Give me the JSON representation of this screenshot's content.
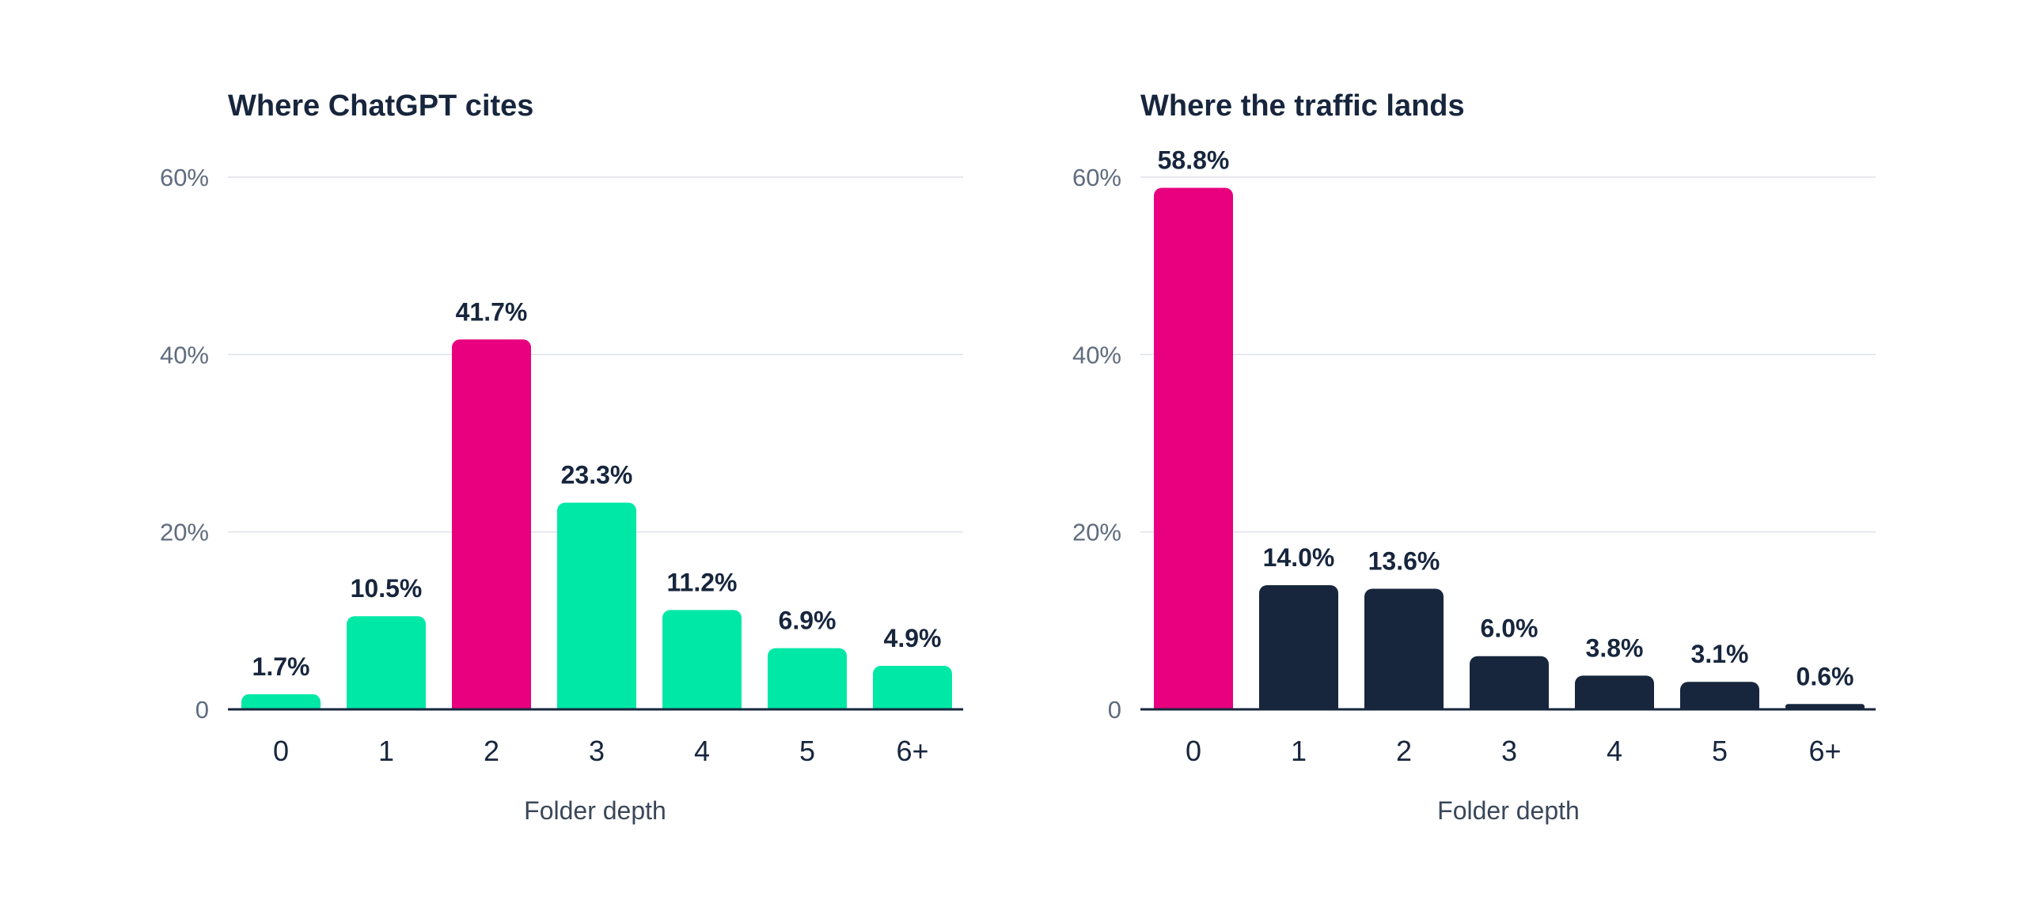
{
  "colors": {
    "highlight": "#e8007f",
    "green": "#00e8a6",
    "navy": "#17263d"
  },
  "chart_data": [
    {
      "type": "bar",
      "title": "Where ChatGPT cites",
      "xlabel": "Folder depth",
      "ylabel": "",
      "ylim": [
        0,
        60
      ],
      "yticks": [
        0,
        20,
        40,
        60
      ],
      "ytick_labels": [
        "0",
        "20%",
        "40%",
        "60%"
      ],
      "grid": true,
      "categories": [
        "0",
        "1",
        "2",
        "3",
        "4",
        "5",
        "6+"
      ],
      "values": [
        1.7,
        10.5,
        41.7,
        23.3,
        11.2,
        6.9,
        4.9
      ],
      "value_labels": [
        "1.7%",
        "10.5%",
        "41.7%",
        "23.3%",
        "11.2%",
        "6.9%",
        "4.9%"
      ],
      "bar_colors": [
        "#00e8a6",
        "#00e8a6",
        "#e8007f",
        "#00e8a6",
        "#00e8a6",
        "#00e8a6",
        "#00e8a6"
      ]
    },
    {
      "type": "bar",
      "title": "Where the traffic lands",
      "xlabel": "Folder depth",
      "ylabel": "",
      "ylim": [
        0,
        60
      ],
      "yticks": [
        0,
        20,
        40,
        60
      ],
      "ytick_labels": [
        "0",
        "20%",
        "40%",
        "60%"
      ],
      "grid": true,
      "categories": [
        "0",
        "1",
        "2",
        "3",
        "4",
        "5",
        "6+"
      ],
      "values": [
        58.8,
        14.0,
        13.6,
        6.0,
        3.8,
        3.1,
        0.6
      ],
      "value_labels": [
        "58.8%",
        "14.0%",
        "13.6%",
        "6.0%",
        "3.8%",
        "3.1%",
        "0.6%"
      ],
      "bar_colors": [
        "#e8007f",
        "#17263d",
        "#17263d",
        "#17263d",
        "#17263d",
        "#17263d",
        "#17263d"
      ]
    }
  ]
}
